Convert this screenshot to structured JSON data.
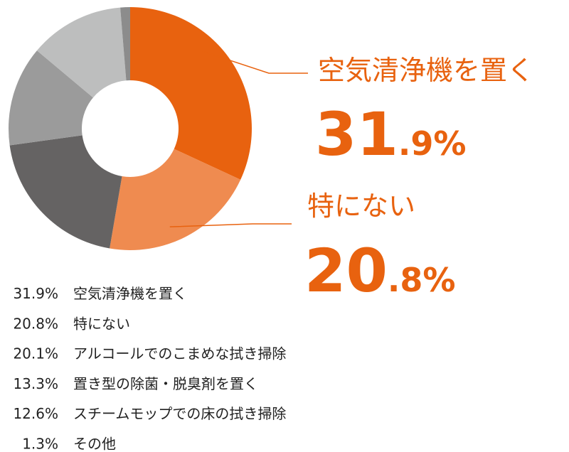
{
  "chart_data": {
    "type": "pie",
    "donut": true,
    "categories": [
      "空気清浄機を置く",
      "特にない",
      "アルコールでのこまめな拭き掃除",
      "置き型の除菌・脱臭剤を置く",
      "スチームモップでの床の拭き掃除",
      "その他"
    ],
    "values": [
      31.9,
      20.8,
      20.1,
      13.3,
      12.6,
      1.3
    ],
    "value_labels": [
      "31.9%",
      "20.8%",
      "20.1%",
      "13.3%",
      "12.6%",
      "1.3%"
    ],
    "colors": [
      "#e8620f",
      "#ef8b50",
      "#656363",
      "#9b9b9b",
      "#bdbebe",
      "#8c8c8c"
    ]
  }
}
